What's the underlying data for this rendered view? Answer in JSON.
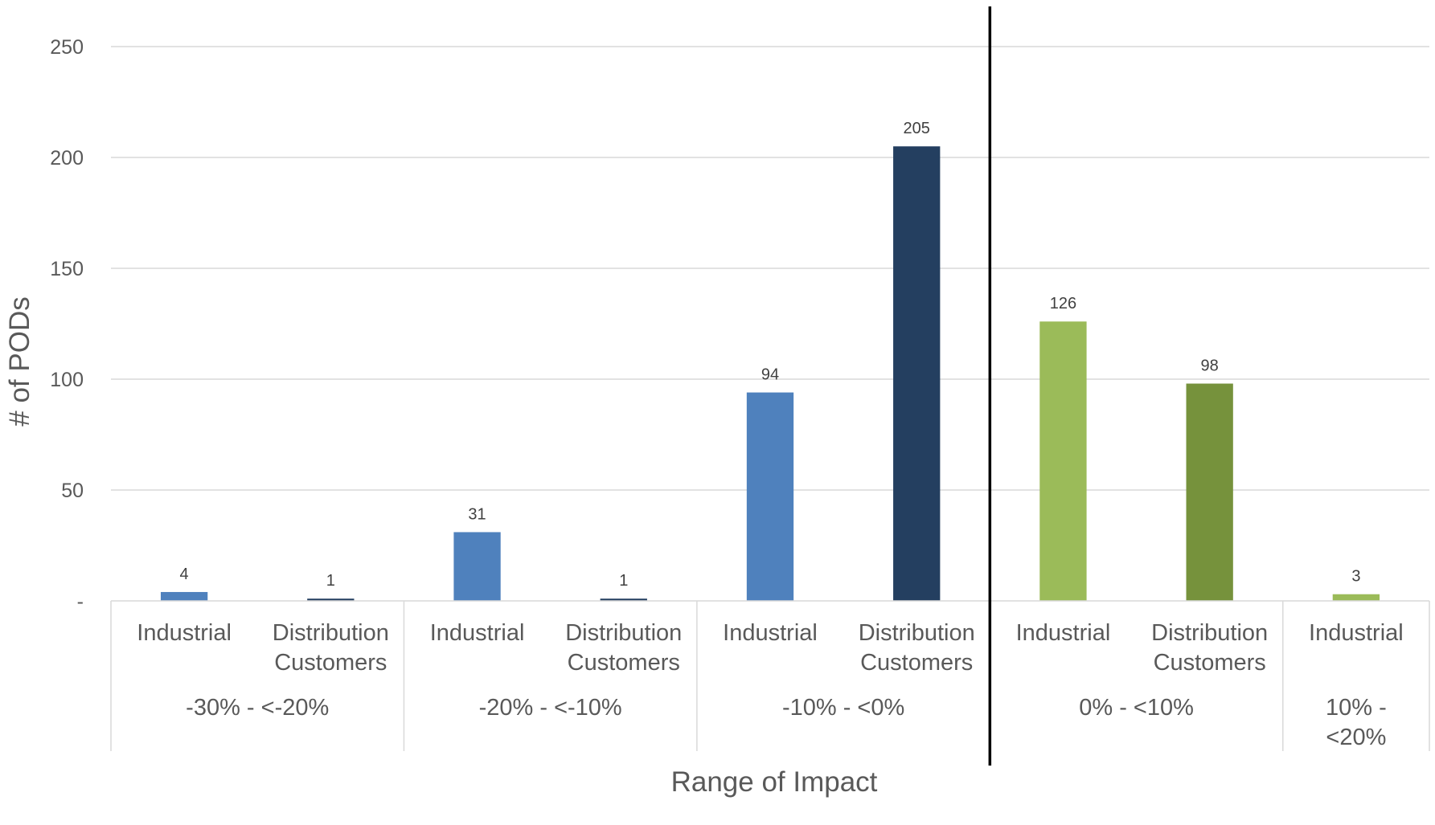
{
  "chart_data": {
    "type": "bar",
    "title": "",
    "xlabel": "Range of Impact",
    "ylabel": "# of PODs",
    "ylim": [
      0,
      250
    ],
    "yticks": [
      {
        "value": 0,
        "label": "-"
      },
      {
        "value": 50,
        "label": "50"
      },
      {
        "value": 100,
        "label": "100"
      },
      {
        "value": 150,
        "label": "150"
      },
      {
        "value": 200,
        "label": "200"
      },
      {
        "value": 250,
        "label": "250"
      }
    ],
    "grid": true,
    "legend": "none",
    "groups": [
      {
        "label": [
          "-30% - <-20%"
        ],
        "bars": [
          {
            "category": [
              "Industrial"
            ],
            "value": 4,
            "color": "#4F81BD"
          },
          {
            "category": [
              "Distribution",
              "Customers"
            ],
            "value": 1,
            "color": "#243F60"
          }
        ]
      },
      {
        "label": [
          "-20% - <-10%"
        ],
        "bars": [
          {
            "category": [
              "Industrial"
            ],
            "value": 31,
            "color": "#4F81BD"
          },
          {
            "category": [
              "Distribution",
              "Customers"
            ],
            "value": 1,
            "color": "#243F60"
          }
        ]
      },
      {
        "label": [
          "-10% - <0%"
        ],
        "bars": [
          {
            "category": [
              "Industrial"
            ],
            "value": 94,
            "color": "#4F81BD"
          },
          {
            "category": [
              "Distribution",
              "Customers"
            ],
            "value": 205,
            "color": "#243F60"
          }
        ]
      },
      {
        "label": [
          "0% - <10%"
        ],
        "bars": [
          {
            "category": [
              "Industrial"
            ],
            "value": 126,
            "color": "#9BBB59"
          },
          {
            "category": [
              "Distribution",
              "Customers"
            ],
            "value": 98,
            "color": "#76923C"
          }
        ]
      },
      {
        "label": [
          "10% -",
          "<20%"
        ],
        "bars": [
          {
            "category": [
              "Industrial"
            ],
            "value": 3,
            "color": "#9BBB59"
          }
        ]
      }
    ],
    "divider_after_group": 3
  }
}
